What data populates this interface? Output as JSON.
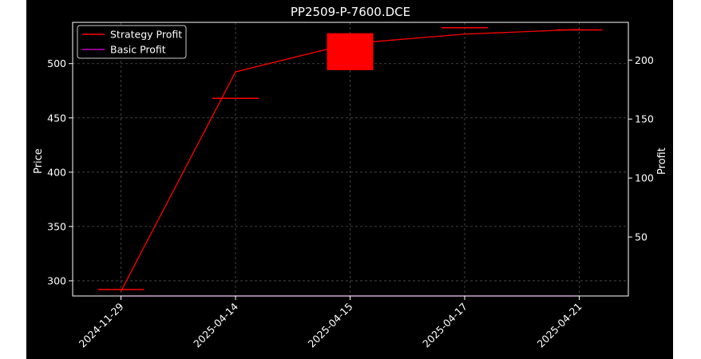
{
  "chart_data": {
    "type": "candlestick+line",
    "title": "PP2509-P-7600.DCE",
    "xlabel": "",
    "ylabel_left": "Price",
    "ylabel_right": "Profit",
    "categories": [
      "2024-11-29",
      "2025-04-14",
      "2025-04-15",
      "2025-04-17",
      "2025-04-21"
    ],
    "left_axis": {
      "ylim": [
        286,
        538
      ],
      "ticks": [
        300,
        350,
        400,
        450,
        500
      ]
    },
    "right_axis": {
      "ylim": [
        0,
        232
      ],
      "ticks": [
        50,
        100,
        150,
        200
      ]
    },
    "candles": [
      {
        "date": "2024-11-29",
        "open": 292,
        "close": 292
      },
      {
        "date": "2025-04-14",
        "open": 468,
        "close": 468
      },
      {
        "date": "2025-04-15",
        "open": 494,
        "close": 528
      },
      {
        "date": "2025-04-17",
        "open": 533,
        "close": 533
      },
      {
        "date": "2025-04-21",
        "open": 531,
        "close": 531
      }
    ],
    "series": [
      {
        "name": "Strategy Profit",
        "axis": "right",
        "color": "#ff0000",
        "values": [
          4,
          190,
          214,
          222,
          226
        ]
      },
      {
        "name": "Basic Profit",
        "axis": "right",
        "color": "#bf00bf",
        "values": [
          0,
          0,
          0,
          0,
          0
        ]
      }
    ],
    "candle_color": "#ff0000",
    "grid": true,
    "legend_position": "top-left",
    "background": "#000000"
  }
}
